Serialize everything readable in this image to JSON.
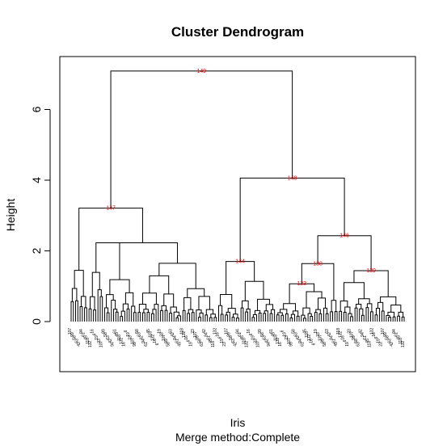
{
  "chart_data": {
    "type": "dendrogram",
    "title": "Cluster Dendrogram",
    "ylabel": "Height",
    "xlabel": "Iris",
    "subtitle": "Merge method:Complete",
    "y_ticks": [
      0,
      2,
      4,
      6
    ],
    "ylim": [
      -1.35,
      7.5
    ],
    "leaf_count": 150,
    "line_color": "#000000",
    "node_label_color": "#ff0000",
    "labeled_merges": [
      {
        "id": "149",
        "height": 7.09
      },
      {
        "id": "148",
        "height": 4.06
      },
      {
        "id": "147",
        "height": 3.21
      },
      {
        "id": "146",
        "height": 2.43
      },
      {
        "id": "144",
        "height": 1.7
      },
      {
        "id": "138",
        "height": 1.64
      },
      {
        "id": "139",
        "height": 1.44
      },
      {
        "id": "133",
        "height": 1.07
      }
    ],
    "leaf_labels_sample": [
      "107",
      "99",
      "58",
      "63",
      "42",
      "94",
      "61",
      "45",
      "118",
      "132",
      "16",
      "6",
      "19",
      "23"
    ]
  }
}
